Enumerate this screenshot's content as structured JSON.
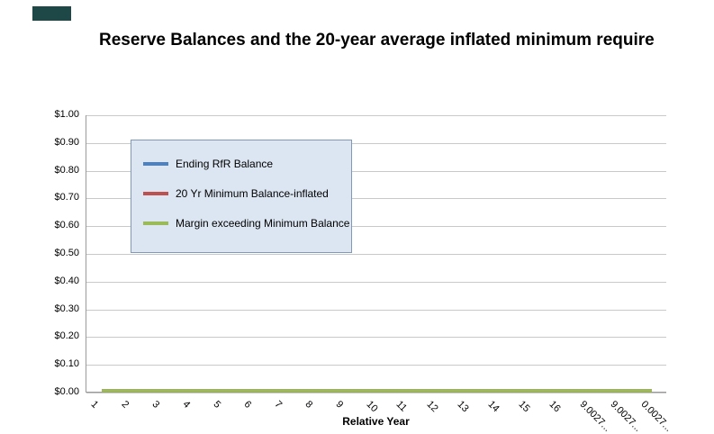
{
  "decorations": {
    "corner_swatch_color": "#1e4848"
  },
  "chart_data": {
    "type": "line",
    "title": "Reserve Balances and the 20-year average inflated minimum require",
    "xlabel": "Relative Year",
    "ylabel": "",
    "ylim": [
      0,
      1
    ],
    "ytick_step": 0.1,
    "ytick_labels": [
      "$0.00",
      "$0.10",
      "$0.20",
      "$0.30",
      "$0.40",
      "$0.50",
      "$0.60",
      "$0.70",
      "$0.80",
      "$0.90",
      "$1.00"
    ],
    "categories": [
      "1",
      "2",
      "3",
      "4",
      "5",
      "6",
      "7",
      "8",
      "9",
      "10",
      "11",
      "12",
      "13",
      "14",
      "15",
      "16",
      "9.0027...",
      "9.0027...",
      "0.0027..."
    ],
    "series": [
      {
        "name": "Ending RfR Balance",
        "color": "#4f81bd",
        "values": [
          0,
          0,
          0,
          0,
          0,
          0,
          0,
          0,
          0,
          0,
          0,
          0,
          0,
          0,
          0,
          0,
          0,
          0,
          0
        ]
      },
      {
        "name": "20 Yr Minimum Balance-inflated",
        "color": "#c0504d",
        "values": [
          0,
          0,
          0,
          0,
          0,
          0,
          0,
          0,
          0,
          0,
          0,
          0,
          0,
          0,
          0,
          0,
          0,
          0,
          0
        ]
      },
      {
        "name": "Margin exceeding Minimum Balance",
        "color": "#9bbb59",
        "values": [
          0,
          0,
          0,
          0,
          0,
          0,
          0,
          0,
          0,
          0,
          0,
          0,
          0,
          0,
          0,
          0,
          0,
          0,
          0
        ]
      }
    ],
    "grid": true,
    "legend_position": "upper-left-inside"
  }
}
